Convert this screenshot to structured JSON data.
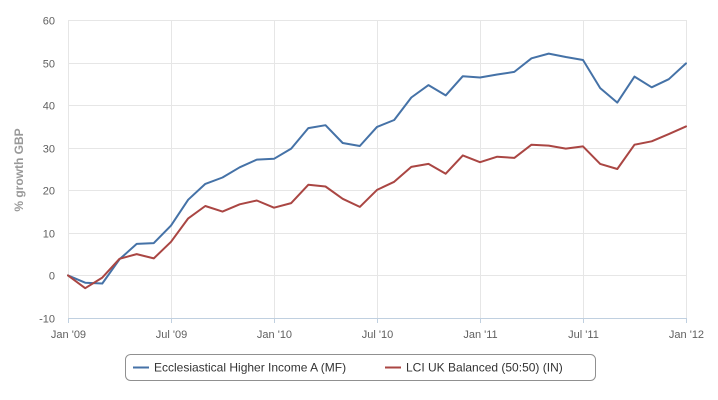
{
  "chart_data": {
    "type": "line",
    "title": "",
    "xlabel": "",
    "ylabel": "% growth GBP",
    "ylim": [
      -10,
      60
    ],
    "yticks": [
      -10,
      0,
      10,
      20,
      30,
      40,
      50,
      60
    ],
    "x_ticks": [
      {
        "label": "Jan '09",
        "month": 0
      },
      {
        "label": "Jul '09",
        "month": 6
      },
      {
        "label": "Jan '10",
        "month": 12
      },
      {
        "label": "Jul '10",
        "month": 18
      },
      {
        "label": "Jan '11",
        "month": 24
      },
      {
        "label": "Jul '11",
        "month": 30
      },
      {
        "label": "Jan '12",
        "month": 36
      }
    ],
    "x": [
      "2009-01",
      "2009-02",
      "2009-03",
      "2009-04",
      "2009-05",
      "2009-06",
      "2009-07",
      "2009-08",
      "2009-09",
      "2009-10",
      "2009-11",
      "2009-12",
      "2010-01",
      "2010-02",
      "2010-03",
      "2010-04",
      "2010-05",
      "2010-06",
      "2010-07",
      "2010-08",
      "2010-09",
      "2010-10",
      "2010-11",
      "2010-12",
      "2011-01",
      "2011-02",
      "2011-03",
      "2011-04",
      "2011-05",
      "2011-06",
      "2011-07",
      "2011-08",
      "2011-09",
      "2011-10",
      "2011-11",
      "2011-12",
      "2012-01"
    ],
    "grid": true,
    "legend_position": "bottom",
    "series": [
      {
        "name": "Ecclesiastical Higher Income A (MF)",
        "color": "#4572A7",
        "values": [
          0,
          -1.7,
          -1.9,
          3.8,
          7.4,
          7.6,
          11.7,
          17.8,
          21.5,
          23.0,
          25.4,
          27.2,
          27.4,
          29.8,
          34.6,
          35.3,
          31.1,
          30.4,
          34.9,
          36.5,
          41.8,
          44.7,
          42.3,
          46.8,
          46.5,
          47.2,
          47.8,
          51.0,
          52.1,
          51.3,
          50.6,
          44.0,
          40.6,
          46.7,
          44.2,
          46.1,
          49.8
        ]
      },
      {
        "name": "LCI UK Balanced (50:50) (IN)",
        "color": "#AA4643",
        "values": [
          0,
          -3.0,
          -0.5,
          3.9,
          5.0,
          4.0,
          7.9,
          13.4,
          16.3,
          15.0,
          16.7,
          17.6,
          15.9,
          17.0,
          21.3,
          20.9,
          18.0,
          16.1,
          20.1,
          22.0,
          25.5,
          26.2,
          23.9,
          28.2,
          26.6,
          27.9,
          27.6,
          30.7,
          30.5,
          29.8,
          30.3,
          26.2,
          25.0,
          30.7,
          31.5,
          33.2,
          35.0
        ]
      }
    ]
  }
}
